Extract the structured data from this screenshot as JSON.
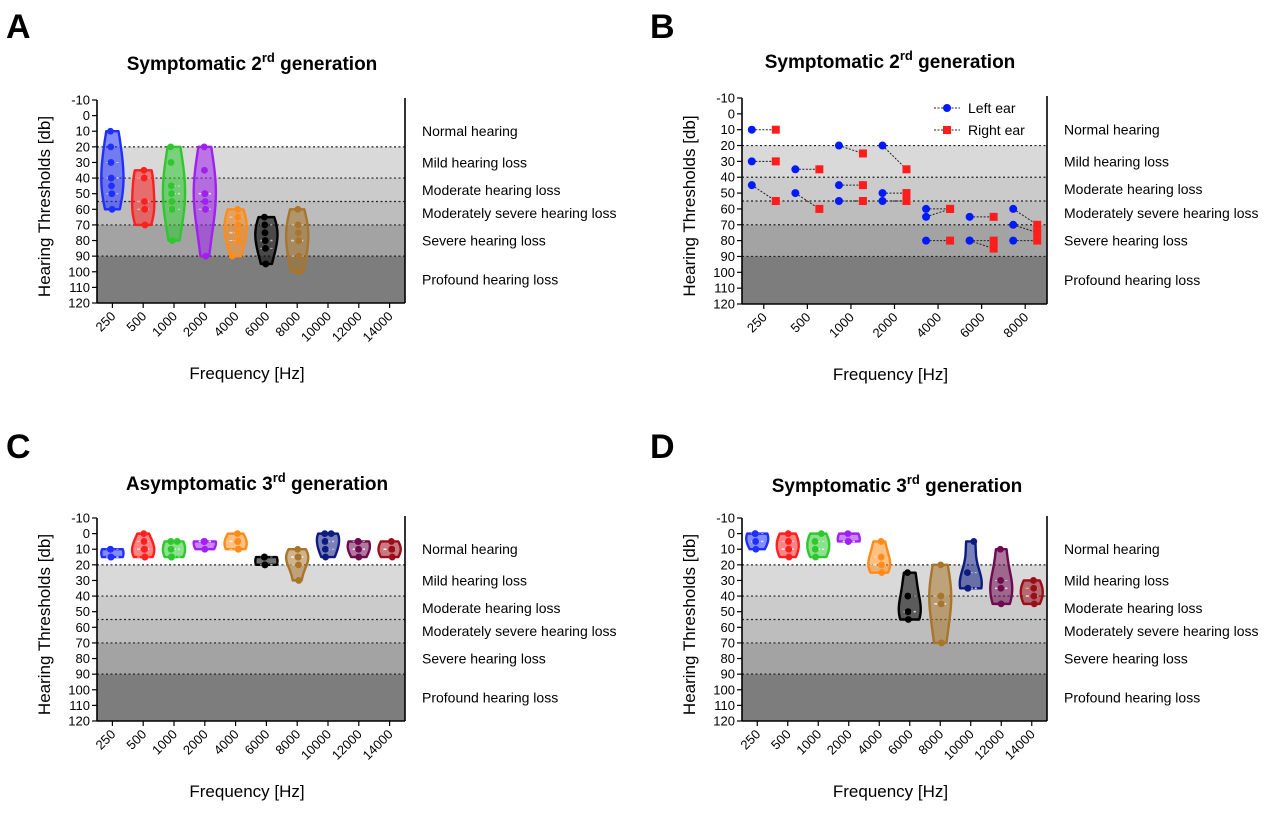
{
  "figure": {
    "panel_letters": [
      "A",
      "B",
      "C",
      "D"
    ]
  },
  "bands": [
    {
      "label": "Normal hearing",
      "from": -10,
      "to": 20,
      "color": "#ffffff"
    },
    {
      "label": "Mild hearing loss",
      "from": 20,
      "to": 40,
      "color": "#d9d9d9"
    },
    {
      "label": "Moderate hearing loss",
      "from": 40,
      "to": 55,
      "color": "#cbcbcb"
    },
    {
      "label": "Moderately severe hearing loss",
      "from": 55,
      "to": 70,
      "color": "#bdbdbd"
    },
    {
      "label": "Severe hearing loss",
      "from": 70,
      "to": 90,
      "color": "#a3a3a3"
    },
    {
      "label": "Profound hearing loss",
      "from": 90,
      "to": 120,
      "color": "#7d7d7d"
    }
  ],
  "series_colors": {
    "250": "#1f2fff",
    "500": "#ff1f1f",
    "1000": "#2ec82e",
    "2000": "#a020f0",
    "4000": "#ff8c1a",
    "6000": "#000000",
    "8000": "#a8752a",
    "10000": "#0d1a80",
    "12000": "#6e0a4e",
    "14000": "#9c0d1a"
  },
  "legend_colors": {
    "left": "#0019ff",
    "right": "#ff1c1c"
  },
  "chart_data": [
    {
      "panel": "A",
      "type": "violin",
      "title_main": "Symptomatic 2",
      "title_sup": "rd",
      "title_end": " generation",
      "xlabel": "Frequency [Hz]",
      "ylabel": "Hearing Thresholds [db]",
      "ylim": [
        -10,
        120
      ],
      "yticks": [
        -10,
        0,
        10,
        20,
        30,
        40,
        50,
        60,
        70,
        80,
        90,
        100,
        110,
        120
      ],
      "categories": [
        "250",
        "500",
        "1000",
        "2000",
        "4000",
        "6000",
        "8000",
        "10000",
        "12000",
        "14000"
      ],
      "series": [
        {
          "category": "250",
          "values": [
            10,
            20,
            30,
            40,
            45,
            50,
            60
          ]
        },
        {
          "category": "500",
          "values": [
            35,
            40,
            55,
            60,
            70
          ]
        },
        {
          "category": "1000",
          "values": [
            20,
            30,
            45,
            50,
            55,
            60,
            80
          ]
        },
        {
          "category": "2000",
          "values": [
            20,
            35,
            50,
            50,
            55,
            60,
            90
          ]
        },
        {
          "category": "4000",
          "values": [
            60,
            65,
            70,
            75,
            80,
            90
          ]
        },
        {
          "category": "6000",
          "values": [
            65,
            70,
            75,
            80,
            85,
            95
          ]
        },
        {
          "category": "8000",
          "values": [
            60,
            70,
            75,
            80,
            90,
            100
          ]
        },
        {
          "category": "10000",
          "values": []
        },
        {
          "category": "12000",
          "values": []
        },
        {
          "category": "14000",
          "values": []
        }
      ]
    },
    {
      "panel": "B",
      "type": "paired-scatter",
      "title_main": "Symptomatic 2",
      "title_sup": "rd",
      "title_end": " generation",
      "xlabel": "Frequency [Hz]",
      "ylabel": "Hearing Thresholds [db]",
      "ylim": [
        -10,
        120
      ],
      "yticks": [
        -10,
        0,
        10,
        20,
        30,
        40,
        50,
        60,
        70,
        80,
        90,
        100,
        110,
        120
      ],
      "categories": [
        "250",
        "500",
        "1000",
        "2000",
        "4000",
        "6000",
        "8000"
      ],
      "legend": [
        "Left ear",
        "Right ear"
      ],
      "pairs": [
        {
          "category": "250",
          "left": [
            10,
            30,
            45
          ],
          "right": [
            10,
            30,
            55
          ]
        },
        {
          "category": "500",
          "left": [
            35,
            50
          ],
          "right": [
            35,
            60
          ]
        },
        {
          "category": "1000",
          "left": [
            20,
            45,
            55
          ],
          "right": [
            25,
            45,
            55
          ]
        },
        {
          "category": "2000",
          "left": [
            20,
            50,
            55
          ],
          "right": [
            35,
            50,
            55
          ]
        },
        {
          "category": "4000",
          "left": [
            60,
            65,
            80
          ],
          "right": [
            60,
            60,
            80
          ]
        },
        {
          "category": "6000",
          "left": [
            65,
            80,
            80
          ],
          "right": [
            65,
            80,
            85
          ]
        },
        {
          "category": "8000",
          "left": [
            60,
            70,
            80
          ],
          "right": [
            70,
            75,
            80
          ]
        }
      ]
    },
    {
      "panel": "C",
      "type": "violin",
      "title_main": "Asymptomatic 3",
      "title_sup": "rd",
      "title_end": " generation",
      "xlabel": "Frequency [Hz]",
      "ylabel": "Hearing Thresholds [db]",
      "ylim": [
        -10,
        120
      ],
      "yticks": [
        -10,
        0,
        10,
        20,
        30,
        40,
        50,
        60,
        70,
        80,
        90,
        100,
        110,
        120
      ],
      "categories": [
        "250",
        "500",
        "1000",
        "2000",
        "4000",
        "6000",
        "8000",
        "10000",
        "12000",
        "14000"
      ],
      "series": [
        {
          "category": "250",
          "values": [
            10,
            10,
            15,
            15
          ]
        },
        {
          "category": "500",
          "values": [
            0,
            5,
            10,
            10,
            15,
            15
          ]
        },
        {
          "category": "1000",
          "values": [
            5,
            5,
            10,
            15,
            15
          ]
        },
        {
          "category": "2000",
          "values": [
            5,
            5,
            5,
            10
          ]
        },
        {
          "category": "4000",
          "values": [
            0,
            5,
            5,
            10,
            10
          ]
        },
        {
          "category": "6000",
          "values": [
            15,
            15,
            20,
            20
          ]
        },
        {
          "category": "8000",
          "values": [
            10,
            15,
            15,
            20,
            30
          ]
        },
        {
          "category": "10000",
          "values": [
            0,
            0,
            5,
            10,
            15
          ]
        },
        {
          "category": "12000",
          "values": [
            5,
            5,
            10,
            15
          ]
        },
        {
          "category": "14000",
          "values": [
            5,
            10,
            10,
            15
          ]
        }
      ]
    },
    {
      "panel": "D",
      "type": "violin",
      "title_main": "Symptomatic 3",
      "title_sup": "rd",
      "title_end": " generation",
      "xlabel": "Frequency [Hz]",
      "ylabel": "Hearing Thresholds [db]",
      "ylim": [
        -10,
        120
      ],
      "yticks": [
        -10,
        0,
        10,
        20,
        30,
        40,
        50,
        60,
        70,
        80,
        90,
        100,
        110,
        120
      ],
      "categories": [
        "250",
        "500",
        "1000",
        "2000",
        "4000",
        "6000",
        "8000",
        "10000",
        "12000",
        "14000"
      ],
      "series": [
        {
          "category": "250",
          "values": [
            0,
            0,
            5,
            10
          ]
        },
        {
          "category": "500",
          "values": [
            0,
            5,
            10,
            15
          ]
        },
        {
          "category": "1000",
          "values": [
            0,
            5,
            10,
            15
          ]
        },
        {
          "category": "2000",
          "values": [
            0,
            5,
            5
          ]
        },
        {
          "category": "4000",
          "values": [
            5,
            15,
            20,
            25
          ]
        },
        {
          "category": "6000",
          "values": [
            25,
            40,
            50,
            55
          ]
        },
        {
          "category": "8000",
          "values": [
            20,
            40,
            45,
            70
          ]
        },
        {
          "category": "10000",
          "values": [
            5,
            25,
            35,
            35
          ]
        },
        {
          "category": "12000",
          "values": [
            10,
            30,
            35,
            45
          ]
        },
        {
          "category": "14000",
          "values": [
            30,
            35,
            40,
            45
          ]
        }
      ]
    }
  ]
}
